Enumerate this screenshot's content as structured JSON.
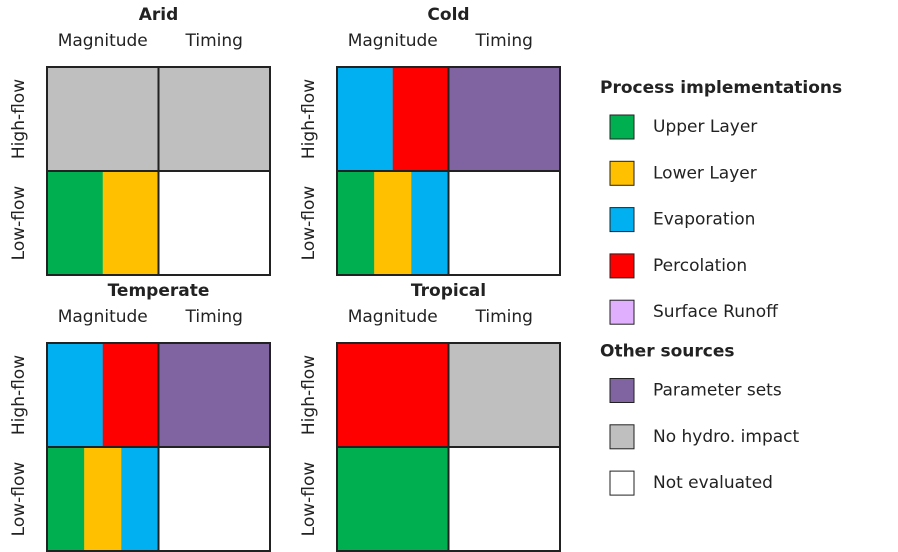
{
  "panels": [
    {
      "title": "Arid",
      "columns": [
        "Magnitude",
        "Timing"
      ],
      "rows": [
        "High-flow",
        "Low-flow"
      ],
      "cells": [
        [
          [
            "#bfbfbf"
          ],
          [
            "#bfbfbf"
          ]
        ],
        [
          [
            "#00b050",
            "#ffc000"
          ],
          [
            "#ffffff"
          ]
        ]
      ]
    },
    {
      "title": "Cold",
      "columns": [
        "Magnitude",
        "Timing"
      ],
      "rows": [
        "High-flow",
        "Low-flow"
      ],
      "cells": [
        [
          [
            "#00b0f0",
            "#ff0000"
          ],
          [
            "#8064a2"
          ]
        ],
        [
          [
            "#00b050",
            "#ffc000",
            "#00b0f0"
          ],
          [
            "#ffffff"
          ]
        ]
      ]
    },
    {
      "title": "Temperate",
      "columns": [
        "Magnitude",
        "Timing"
      ],
      "rows": [
        "High-flow",
        "Low-flow"
      ],
      "cells": [
        [
          [
            "#00b0f0",
            "#ff0000"
          ],
          [
            "#8064a2"
          ]
        ],
        [
          [
            "#00b050",
            "#ffc000",
            "#00b0f0"
          ],
          [
            "#ffffff"
          ]
        ]
      ]
    },
    {
      "title": "Tropical",
      "columns": [
        "Magnitude",
        "Timing"
      ],
      "rows": [
        "High-flow",
        "Low-flow"
      ],
      "cells": [
        [
          [
            "#ff0000"
          ],
          [
            "#bfbfbf"
          ]
        ],
        [
          [
            "#00b050"
          ],
          [
            "#ffffff"
          ]
        ]
      ]
    }
  ],
  "legend": {
    "sections": [
      {
        "title": "Process implementations",
        "items": [
          {
            "label": "Upper Layer",
            "color": "#00b050"
          },
          {
            "label": "Lower Layer",
            "color": "#ffc000"
          },
          {
            "label": "Evaporation",
            "color": "#00b0f0"
          },
          {
            "label": "Percolation",
            "color": "#ff0000"
          },
          {
            "label": "Surface Runoff",
            "color": "#e0b0ff"
          }
        ]
      },
      {
        "title": "Other sources",
        "items": [
          {
            "label": "Parameter sets",
            "color": "#8064a2"
          },
          {
            "label": "No hydro. impact",
            "color": "#bfbfbf"
          },
          {
            "label": "Not evaluated",
            "color": "#ffffff"
          }
        ]
      }
    ]
  }
}
